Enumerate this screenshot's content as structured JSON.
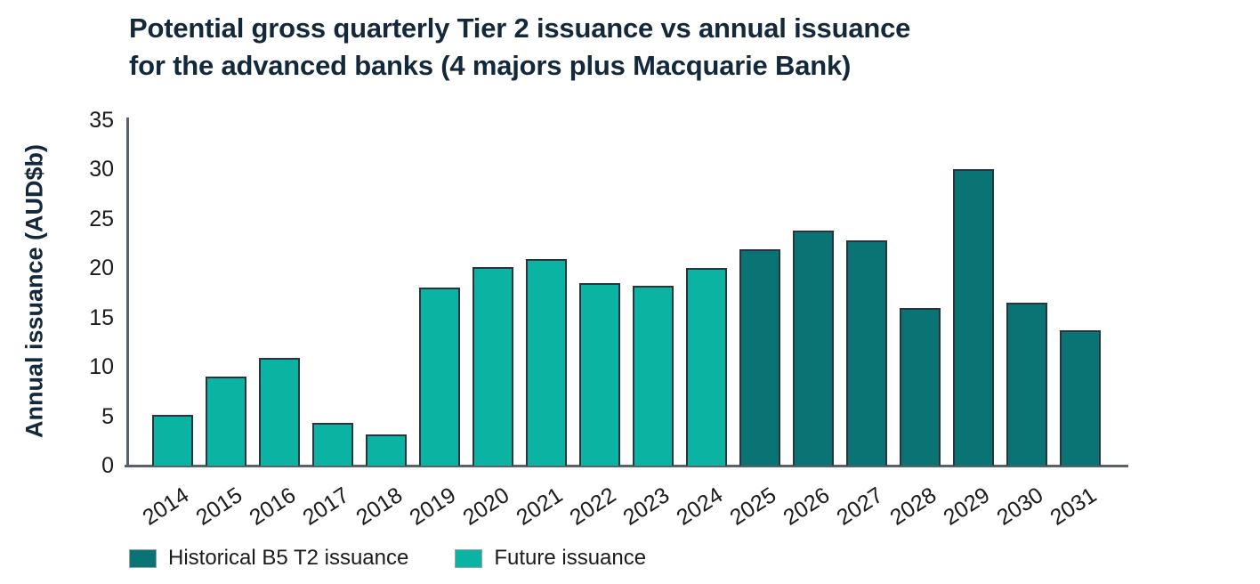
{
  "title": {
    "line1": "Potential gross quarterly Tier 2 issuance vs annual issuance",
    "line2": "for the advanced banks (4 majors plus Macquarie Bank)"
  },
  "chart_data": {
    "type": "bar",
    "title": "Potential gross quarterly Tier 2 issuance vs annual issuance for the advanced banks (4 majors plus Macquarie Bank)",
    "xlabel": "",
    "ylabel": "Annual issuance (AUD$b)",
    "ylim": [
      0,
      35
    ],
    "yticks": [
      0,
      5,
      10,
      15,
      20,
      25,
      30,
      35
    ],
    "grid": false,
    "legend_position": "bottom-left",
    "categories": [
      "2014",
      "2015",
      "2016",
      "2017",
      "2018",
      "2019",
      "2020",
      "2021",
      "2022",
      "2023",
      "2024",
      "2025",
      "2026",
      "2027",
      "2028",
      "2029",
      "2030",
      "2031"
    ],
    "values": [
      5.1,
      9.0,
      10.9,
      4.3,
      3.2,
      18.0,
      20.1,
      20.9,
      18.5,
      18.2,
      20.0,
      21.9,
      23.8,
      22.8,
      16.0,
      30.0,
      16.5,
      13.7
    ],
    "bar_series": [
      "future",
      "future",
      "future",
      "future",
      "future",
      "future",
      "future",
      "future",
      "future",
      "future",
      "future",
      "historical",
      "historical",
      "historical",
      "historical",
      "historical",
      "historical",
      "historical"
    ],
    "series": [
      {
        "name": "Historical B5 T2 issuance",
        "key": "historical",
        "color": "#0A7474"
      },
      {
        "name": "Future issuance",
        "key": "future",
        "color": "#0BB4A2"
      }
    ]
  },
  "colors": {
    "background": "#FFFFFF",
    "title_text": "#14283C",
    "axis_title_text": "#14283C",
    "tick_text": "#1B1B1B",
    "axis_line": "#59626C",
    "bar_border": "#2A3440",
    "historical_fill": "#0A7474",
    "future_fill": "#0BB4A2",
    "legend_text": "#1B1B1B",
    "legend_swatch_border": "#9AA2AA"
  }
}
